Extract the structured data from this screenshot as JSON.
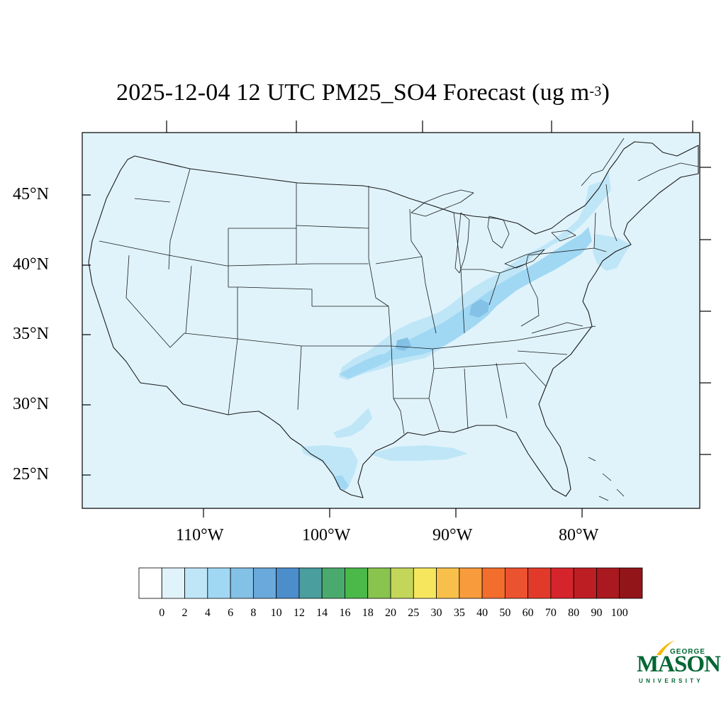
{
  "title": {
    "main": "2025-12-04 12 UTC PM25_SO4 Forecast (ug m",
    "exponent": "-3",
    "close": ")"
  },
  "latitude_labels": [
    "45°N",
    "40°N",
    "35°N",
    "30°N",
    "25°N"
  ],
  "longitude_labels": [
    "110°W",
    "100°W",
    "90°W",
    "80°W"
  ],
  "colorbar": {
    "labels": [
      "0",
      "2",
      "4",
      "6",
      "8",
      "10",
      "12",
      "14",
      "16",
      "18",
      "20",
      "25",
      "30",
      "35",
      "40",
      "50",
      "60",
      "70",
      "80",
      "90",
      "100"
    ],
    "colors": [
      "#ffffff",
      "#e0f3fb",
      "#bfe6f7",
      "#a0d8f4",
      "#84c1e6",
      "#6aa9db",
      "#4c8dcb",
      "#4a9e9e",
      "#4aaa6e",
      "#4bb84a",
      "#88c44e",
      "#c3d65a",
      "#f5e65d",
      "#f8c04a",
      "#f79b3c",
      "#f36d2d",
      "#eb5230",
      "#e23a2a",
      "#d6242c",
      "#bd1e24",
      "#a9191f",
      "#921519"
    ],
    "range": [
      0,
      100
    ]
  },
  "map": {
    "domain": "Contiguous United States",
    "lon_range": [
      -119,
      -71
    ],
    "lat_range": [
      23,
      49
    ],
    "background_color": "#e0f3fb",
    "plume_color_light": "#bfe6f7",
    "plume_color_medium": "#a0d8f4",
    "plume_color_strong": "#84c1e6"
  },
  "logo": {
    "line1": "GEORGE",
    "line2": "MASON",
    "line3": "UNIVERSITY",
    "color": "#006633",
    "accent": "#f5b800"
  }
}
